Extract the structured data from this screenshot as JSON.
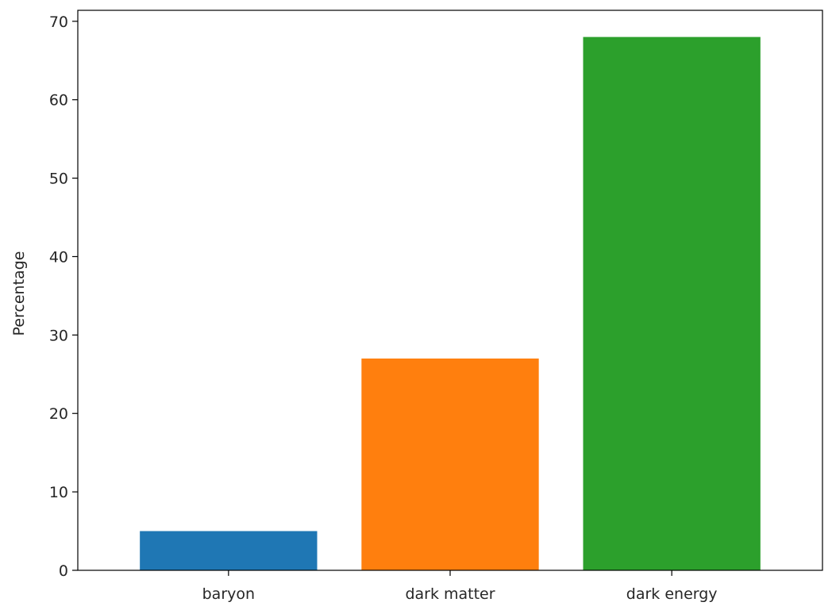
{
  "chart_data": {
    "type": "bar",
    "categories": [
      "baryon",
      "dark matter",
      "dark energy"
    ],
    "values": [
      5,
      27,
      68
    ],
    "colors": [
      "#1f77b4",
      "#ff7f0e",
      "#2ca02c"
    ],
    "title": "",
    "xlabel": "",
    "ylabel": "Percentage",
    "ylim": [
      0,
      71.4
    ],
    "yticks": [
      0,
      10,
      20,
      30,
      40,
      50,
      60,
      70
    ],
    "grid": false,
    "legend": "none"
  }
}
